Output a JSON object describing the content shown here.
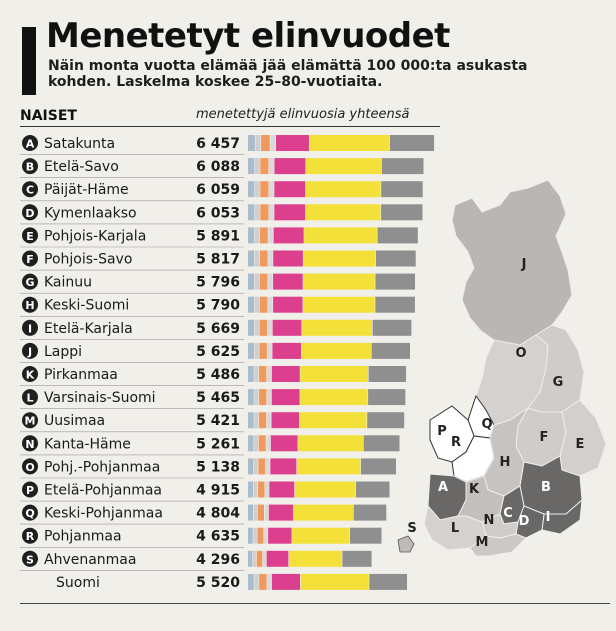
{
  "header": {
    "title": "Menetetyt elinvuodet",
    "subtitle": "Näin monta vuotta elämää jää elämättä 100 000:ta asukasta kohden. Laskelma koskee 25–80-vuotiaita.",
    "section": "NAISET",
    "column_note": "menetettyjä elinvuosia yhteensä"
  },
  "chart_data": {
    "type": "bar",
    "title": "Menetetyt elinvuodet",
    "xlabel": "menetettyjä elinvuosia yhteensä",
    "ylabel": "",
    "xlim": [
      0,
      6500
    ],
    "grid": false,
    "legend": "none",
    "categories": [
      {
        "letter": "A",
        "name": "Satakunta",
        "label": "6 457",
        "value": 6457
      },
      {
        "letter": "B",
        "name": "Etelä-Savo",
        "label": "6 088",
        "value": 6088
      },
      {
        "letter": "C",
        "name": "Päijät-Häme",
        "label": "6 059",
        "value": 6059
      },
      {
        "letter": "D",
        "name": "Kymenlaakso",
        "label": "6 053",
        "value": 6053
      },
      {
        "letter": "E",
        "name": "Pohjois-Karjala",
        "label": "5 891",
        "value": 5891
      },
      {
        "letter": "F",
        "name": "Pohjois-Savo",
        "label": "5 817",
        "value": 5817
      },
      {
        "letter": "G",
        "name": "Kainuu",
        "label": "5 796",
        "value": 5796
      },
      {
        "letter": "H",
        "name": "Keski-Suomi",
        "label": "5 790",
        "value": 5790
      },
      {
        "letter": "I",
        "name": "Etelä-Karjala",
        "label": "5 669",
        "value": 5669
      },
      {
        "letter": "J",
        "name": "Lappi",
        "label": "5 625",
        "value": 5625
      },
      {
        "letter": "K",
        "name": "Pirkanmaa",
        "label": "5 486",
        "value": 5486
      },
      {
        "letter": "L",
        "name": "Varsinais-Suomi",
        "label": "5 465",
        "value": 5465
      },
      {
        "letter": "M",
        "name": "Uusimaa",
        "label": "5 421",
        "value": 5421
      },
      {
        "letter": "N",
        "name": "Kanta-Häme",
        "label": "5 261",
        "value": 5261
      },
      {
        "letter": "O",
        "name": "Pohj.-Pohjanmaa",
        "label": "5 138",
        "value": 5138
      },
      {
        "letter": "P",
        "name": "Etelä-Pohjanmaa",
        "label": "4 915",
        "value": 4915
      },
      {
        "letter": "Q",
        "name": "Keski-Pohjanmaa",
        "label": "4 804",
        "value": 4804
      },
      {
        "letter": "R",
        "name": "Pohjanmaa",
        "label": "4 635",
        "value": 4635
      },
      {
        "letter": "S",
        "name": "Ahvenanmaa",
        "label": "4 296",
        "value": 4296
      },
      {
        "letter": "",
        "name": "Suomi",
        "label": "5 520",
        "value": 5520
      }
    ],
    "segment_colors": [
      "#a9bccb",
      "#cfcfcf",
      "#f0995c",
      "#d9d9d9",
      "#dc3f8d",
      "#f3e13a",
      "#8f8f8f"
    ],
    "segment_shares": [
      0.04,
      0.03,
      0.05,
      0.03,
      0.18,
      0.43,
      0.24
    ],
    "map": {
      "labels": [
        "J",
        "O",
        "G",
        "Q",
        "P",
        "R",
        "F",
        "E",
        "H",
        "A",
        "K",
        "B",
        "C",
        "D",
        "I",
        "N",
        "L",
        "M",
        "S"
      ],
      "highlight": [
        "A",
        "B",
        "C",
        "D",
        "I"
      ]
    }
  }
}
